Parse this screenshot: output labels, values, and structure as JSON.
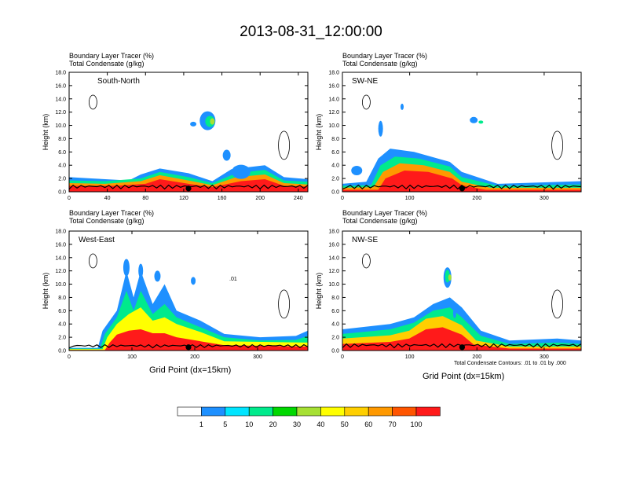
{
  "title": "2013-08-31_12:00:00",
  "panel_heading": {
    "line1": "Boundary Layer Tracer   (%)",
    "line2": "Total Condensate   (g/kg)"
  },
  "x_axis_label": "Grid Point (dx=15km)",
  "y_axis_label": "Height (km)",
  "contour_note": "Total Condensate Contours: .01 to .01 by .000",
  "contour_label": ".01",
  "colorbar": {
    "colors": [
      "#ffffff",
      "#1e90ff",
      "#00e5ff",
      "#00ea8c",
      "#00d800",
      "#a6e033",
      "#ffff00",
      "#ffcf00",
      "#ff9900",
      "#ff5500",
      "#ff1a1a"
    ],
    "labels": [
      "1",
      "5",
      "10",
      "20",
      "30",
      "40",
      "50",
      "60",
      "70",
      "100"
    ]
  },
  "chart_data": [
    {
      "type": "contour",
      "name": "South-North",
      "ylim": [
        0,
        18
      ],
      "yticks": [
        "0.0",
        "2.0",
        "4.0",
        "6.0",
        "8.0",
        "10.0",
        "12.0",
        "14.0",
        "16.0",
        "18.0"
      ],
      "xlim": [
        0,
        250
      ],
      "xticks": [
        0,
        40,
        80,
        120,
        160,
        200,
        240
      ],
      "marker_x": 125
    },
    {
      "type": "contour",
      "name": "SW-NE",
      "ylim": [
        0,
        18
      ],
      "yticks": [
        "0.0",
        "2.0",
        "4.0",
        "6.0",
        "8.0",
        "10.0",
        "12.0",
        "14.0",
        "16.0",
        "18.0"
      ],
      "xlim": [
        0,
        355
      ],
      "xticks": [
        0,
        100,
        200,
        300
      ],
      "marker_x": 178
    },
    {
      "type": "contour",
      "name": "West-East",
      "ylim": [
        0,
        18
      ],
      "yticks": [
        "0.0",
        "2.0",
        "4.0",
        "6.0",
        "8.0",
        "10.0",
        "12.0",
        "14.0",
        "16.0",
        "18.0"
      ],
      "xlim": [
        0,
        380
      ],
      "xticks": [
        0,
        100,
        200,
        300
      ],
      "marker_x": 190
    },
    {
      "type": "contour",
      "name": "NW-SE",
      "ylim": [
        0,
        18
      ],
      "yticks": [
        "0.0",
        "2.0",
        "4.0",
        "6.0",
        "8.0",
        "10.0",
        "12.0",
        "14.0",
        "16.0",
        "18.0"
      ],
      "xlim": [
        0,
        355
      ],
      "xticks": [
        0,
        100,
        200,
        300
      ],
      "marker_x": 178
    }
  ]
}
